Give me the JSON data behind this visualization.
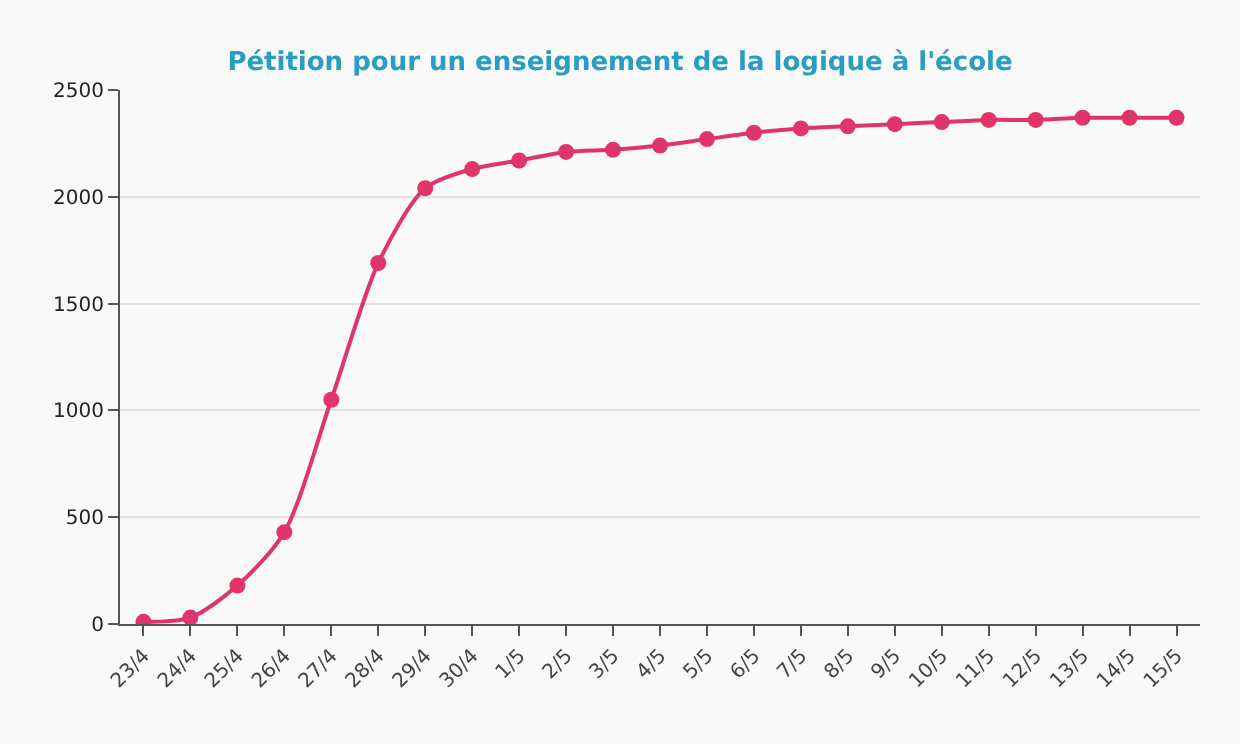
{
  "chart_data": {
    "type": "line",
    "title": "Pétition pour un enseignement de la logique à l'école",
    "categories": [
      "23/4",
      "24/4",
      "25/4",
      "26/4",
      "27/4",
      "28/4",
      "29/4",
      "30/4",
      "1/5",
      "2/5",
      "3/5",
      "4/5",
      "5/5",
      "6/5",
      "7/5",
      "8/5",
      "9/5",
      "10/5",
      "11/5",
      "12/5",
      "13/5",
      "14/5",
      "15/5"
    ],
    "series": [
      {
        "color": "#e0356a",
        "values": [
          10,
          30,
          180,
          430,
          1050,
          1690,
          2040,
          2130,
          2170,
          2210,
          2220,
          2240,
          2270,
          2300,
          2320,
          2330,
          2340,
          2350,
          2360,
          2360,
          2370,
          2370,
          2370
        ]
      }
    ],
    "ylim": [
      0,
      2500
    ],
    "yticks": [
      0,
      500,
      1000,
      1500,
      2000,
      2500
    ],
    "grid": "y",
    "marker": "circle",
    "line_style": "solid",
    "legend": false
  }
}
